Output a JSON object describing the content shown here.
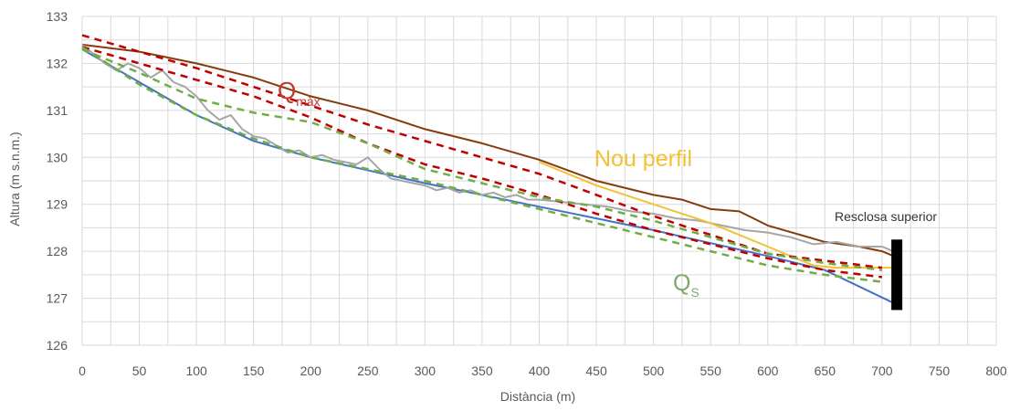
{
  "chart_data": {
    "type": "line",
    "title": "",
    "xlabel": "Distància (m)",
    "ylabel": "Altura (m s.n.m.)",
    "xlim": [
      0,
      800
    ],
    "ylim": [
      126,
      133
    ],
    "x_ticks": [
      "0",
      "50",
      "100",
      "150",
      "200",
      "250",
      "300",
      "350",
      "400",
      "450",
      "500",
      "550",
      "600",
      "650",
      "700",
      "750",
      "800"
    ],
    "y_ticks": [
      "126",
      "127",
      "128",
      "129",
      "130",
      "131",
      "132",
      "133"
    ],
    "grid": true,
    "legend": "none",
    "series": [
      {
        "key": "bed",
        "color": "#4472c4",
        "dash": false,
        "points": [
          [
            0,
            132.3
          ],
          [
            50,
            131.6
          ],
          [
            100,
            130.9
          ],
          [
            150,
            130.35
          ],
          [
            200,
            130.0
          ],
          [
            300,
            129.45
          ],
          [
            400,
            128.95
          ],
          [
            500,
            128.45
          ],
          [
            600,
            127.9
          ],
          [
            650,
            127.6
          ],
          [
            710,
            126.9
          ]
        ]
      },
      {
        "key": "banks",
        "color": "#843c0c",
        "dash": false,
        "points": [
          [
            0,
            132.4
          ],
          [
            50,
            132.25
          ],
          [
            100,
            132.0
          ],
          [
            150,
            131.7
          ],
          [
            200,
            131.3
          ],
          [
            250,
            131.0
          ],
          [
            300,
            130.6
          ],
          [
            350,
            130.3
          ],
          [
            400,
            129.95
          ],
          [
            450,
            129.5
          ],
          [
            500,
            129.2
          ],
          [
            525,
            129.1
          ],
          [
            550,
            128.9
          ],
          [
            575,
            128.85
          ],
          [
            600,
            128.55
          ],
          [
            650,
            128.2
          ],
          [
            680,
            128.1
          ],
          [
            700,
            128.0
          ],
          [
            710,
            127.9
          ]
        ]
      },
      {
        "key": "measured",
        "color": "#a6a6a6",
        "dash": false,
        "points": [
          [
            0,
            132.4
          ],
          [
            10,
            132.2
          ],
          [
            20,
            132.0
          ],
          [
            30,
            131.85
          ],
          [
            40,
            132.0
          ],
          [
            50,
            131.9
          ],
          [
            60,
            131.7
          ],
          [
            70,
            131.85
          ],
          [
            80,
            131.6
          ],
          [
            90,
            131.5
          ],
          [
            100,
            131.3
          ],
          [
            110,
            131.0
          ],
          [
            120,
            130.8
          ],
          [
            130,
            130.9
          ],
          [
            140,
            130.6
          ],
          [
            150,
            130.45
          ],
          [
            160,
            130.4
          ],
          [
            170,
            130.25
          ],
          [
            180,
            130.1
          ],
          [
            190,
            130.15
          ],
          [
            200,
            130.0
          ],
          [
            210,
            130.05
          ],
          [
            220,
            129.95
          ],
          [
            230,
            129.9
          ],
          [
            240,
            129.85
          ],
          [
            250,
            130.0
          ],
          [
            260,
            129.75
          ],
          [
            270,
            129.55
          ],
          [
            280,
            129.5
          ],
          [
            290,
            129.45
          ],
          [
            300,
            129.4
          ],
          [
            310,
            129.3
          ],
          [
            320,
            129.35
          ],
          [
            330,
            129.25
          ],
          [
            340,
            129.3
          ],
          [
            350,
            129.2
          ],
          [
            360,
            129.25
          ],
          [
            370,
            129.15
          ],
          [
            380,
            129.2
          ],
          [
            390,
            129.1
          ],
          [
            400,
            129.1
          ],
          [
            420,
            129.05
          ],
          [
            440,
            129.0
          ],
          [
            460,
            128.95
          ],
          [
            480,
            128.85
          ],
          [
            500,
            128.8
          ],
          [
            520,
            128.7
          ],
          [
            540,
            128.65
          ],
          [
            560,
            128.55
          ],
          [
            580,
            128.45
          ],
          [
            600,
            128.4
          ],
          [
            620,
            128.3
          ],
          [
            640,
            128.15
          ],
          [
            660,
            128.2
          ],
          [
            680,
            128.1
          ],
          [
            700,
            128.1
          ],
          [
            710,
            128.0
          ]
        ]
      },
      {
        "key": "nou_perfil",
        "color": "#f1c232",
        "dash": false,
        "points": [
          [
            400,
            129.9
          ],
          [
            450,
            129.4
          ],
          [
            500,
            129.0
          ],
          [
            550,
            128.6
          ],
          [
            600,
            128.1
          ],
          [
            640,
            127.7
          ],
          [
            660,
            127.65
          ],
          [
            710,
            127.65
          ]
        ]
      },
      {
        "key": "qmax_upper",
        "color": "#c00000",
        "dash": true,
        "points": [
          [
            0,
            132.6
          ],
          [
            50,
            132.25
          ],
          [
            100,
            131.9
          ],
          [
            150,
            131.5
          ],
          [
            200,
            131.1
          ],
          [
            250,
            130.7
          ],
          [
            300,
            130.35
          ],
          [
            350,
            130.0
          ],
          [
            400,
            129.65
          ],
          [
            450,
            129.2
          ],
          [
            500,
            128.75
          ],
          [
            550,
            128.35
          ],
          [
            600,
            127.95
          ],
          [
            650,
            127.8
          ],
          [
            700,
            127.65
          ]
        ]
      },
      {
        "key": "qmax_lower",
        "color": "#c00000",
        "dash": true,
        "points": [
          [
            0,
            132.35
          ],
          [
            50,
            132.0
          ],
          [
            100,
            131.65
          ],
          [
            150,
            131.3
          ],
          [
            200,
            130.85
          ],
          [
            250,
            130.3
          ],
          [
            300,
            129.85
          ],
          [
            350,
            129.55
          ],
          [
            400,
            129.2
          ],
          [
            450,
            128.8
          ],
          [
            500,
            128.45
          ],
          [
            550,
            128.15
          ],
          [
            600,
            127.85
          ],
          [
            650,
            127.6
          ],
          [
            700,
            127.45
          ]
        ]
      },
      {
        "key": "qs_upper",
        "color": "#70ad47",
        "dash": true,
        "points": [
          [
            0,
            132.3
          ],
          [
            50,
            131.8
          ],
          [
            100,
            131.25
          ],
          [
            150,
            130.95
          ],
          [
            200,
            130.75
          ],
          [
            250,
            130.3
          ],
          [
            300,
            129.75
          ],
          [
            350,
            129.45
          ],
          [
            400,
            129.15
          ],
          [
            450,
            128.95
          ],
          [
            500,
            128.65
          ],
          [
            550,
            128.3
          ],
          [
            600,
            127.95
          ],
          [
            650,
            127.75
          ],
          [
            700,
            127.6
          ]
        ]
      },
      {
        "key": "qs_lower",
        "color": "#70ad47",
        "dash": true,
        "points": [
          [
            0,
            132.35
          ],
          [
            50,
            131.55
          ],
          [
            100,
            130.9
          ],
          [
            150,
            130.4
          ],
          [
            200,
            130.0
          ],
          [
            250,
            129.75
          ],
          [
            300,
            129.5
          ],
          [
            350,
            129.2
          ],
          [
            400,
            128.9
          ],
          [
            450,
            128.6
          ],
          [
            500,
            128.3
          ],
          [
            550,
            128.0
          ],
          [
            600,
            127.7
          ],
          [
            650,
            127.5
          ],
          [
            700,
            127.35
          ]
        ]
      }
    ],
    "annotations": {
      "qmax_main": "Q",
      "qmax_sub": "màx",
      "nou_perfil": "Nou perfil",
      "qs_main": "Q",
      "qs_sub": "S",
      "weir": "Resclosa superior"
    },
    "weir": {
      "x": 713,
      "y_top": 128.25,
      "y_bottom": 126.75,
      "color": "#000000"
    }
  }
}
